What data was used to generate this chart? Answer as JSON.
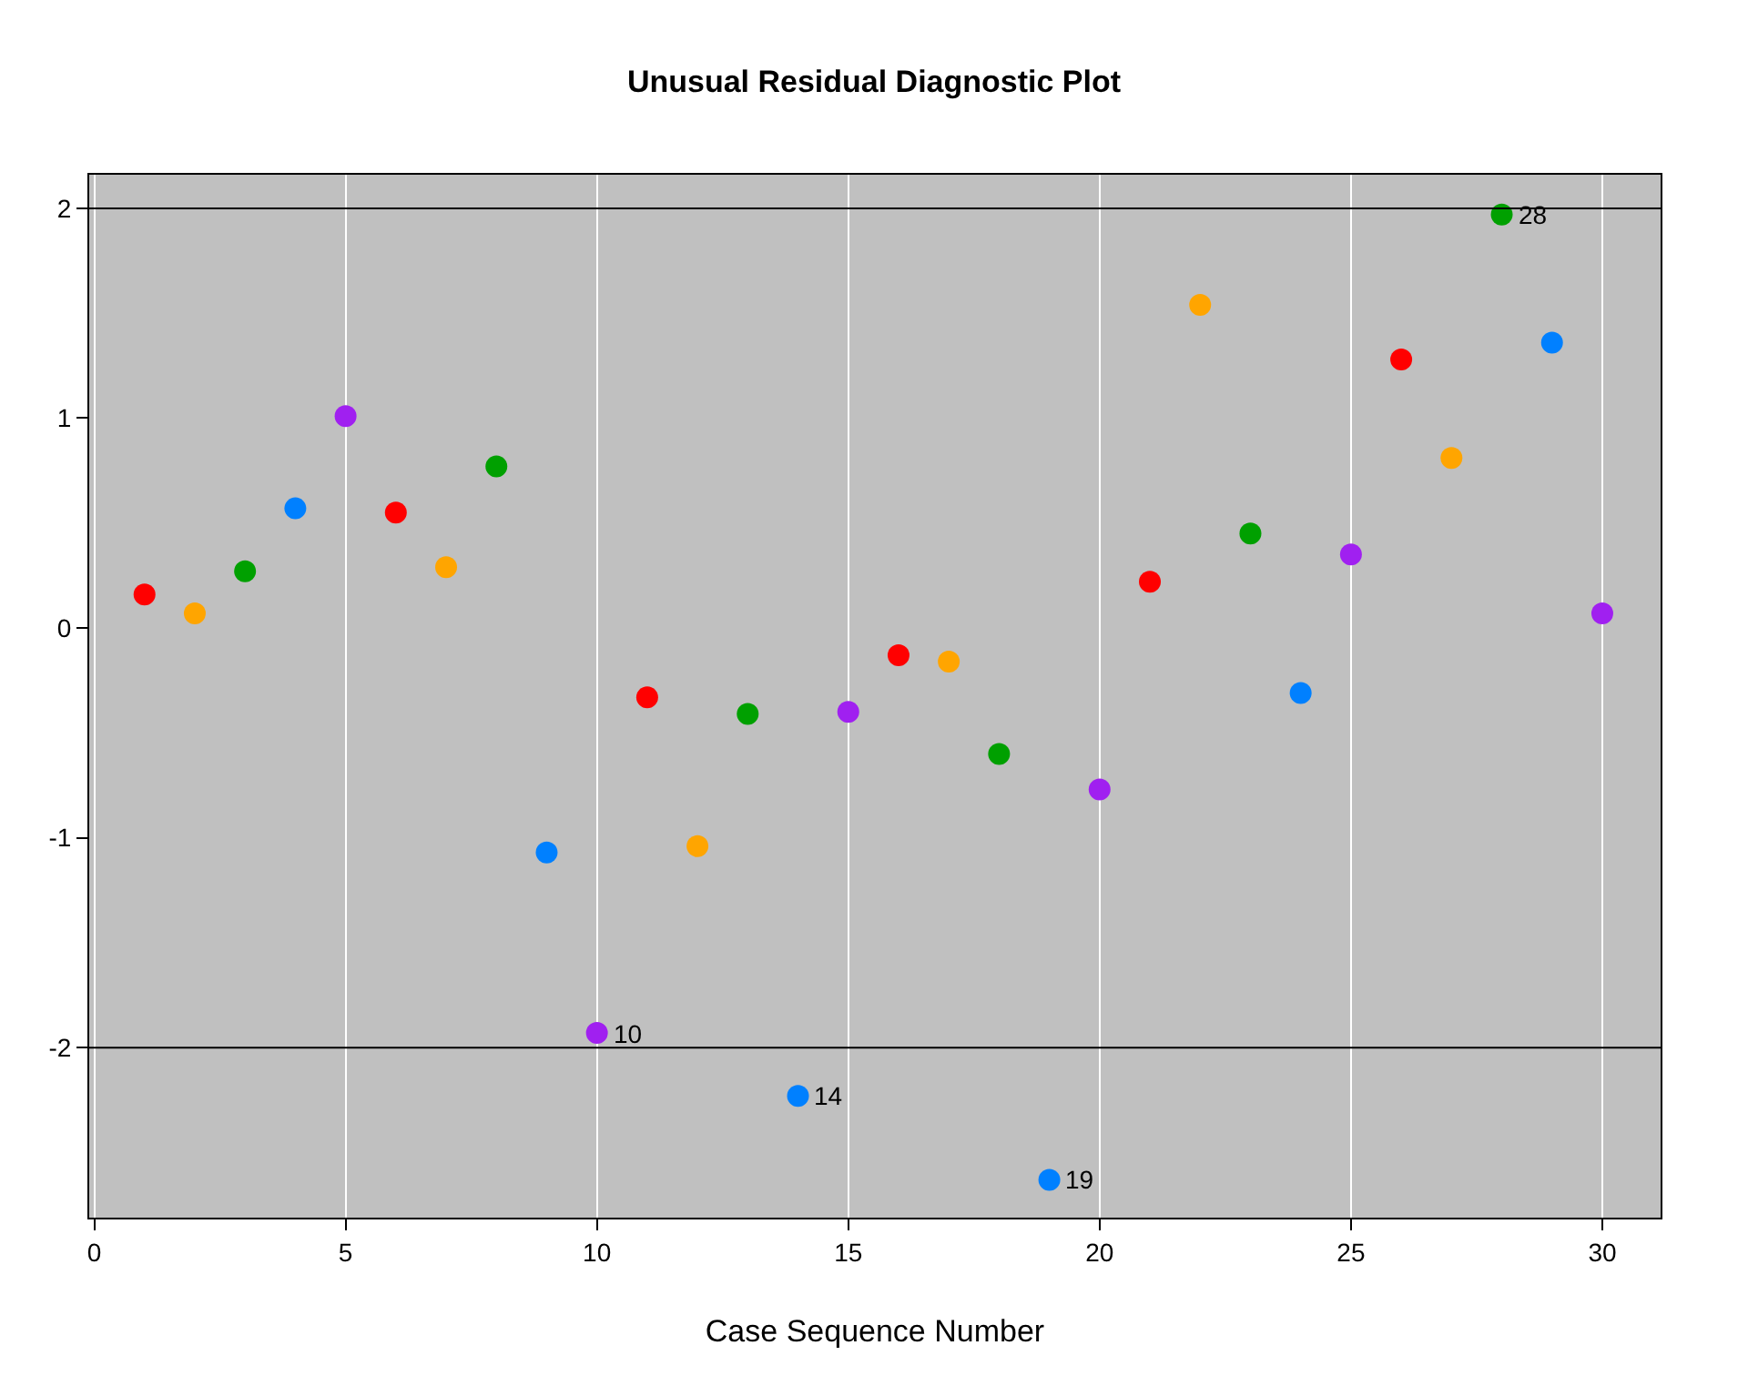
{
  "chart_data": {
    "type": "scatter",
    "title": "Unusual Residual Diagnostic Plot",
    "xlabel": "Case Sequence Number",
    "x": [
      1,
      2,
      3,
      4,
      5,
      6,
      7,
      8,
      9,
      10,
      11,
      12,
      13,
      14,
      15,
      16,
      17,
      18,
      19,
      20,
      21,
      22,
      23,
      24,
      25,
      26,
      27,
      28,
      29,
      30
    ],
    "values": [
      0.16,
      0.07,
      0.27,
      0.57,
      1.01,
      0.55,
      0.29,
      0.77,
      -1.07,
      -1.93,
      -0.33,
      -1.04,
      -0.41,
      -2.23,
      -0.4,
      -0.13,
      -0.16,
      -0.6,
      -2.63,
      -0.77,
      0.22,
      1.54,
      0.45,
      -0.31,
      0.35,
      1.28,
      0.81,
      1.97,
      1.36,
      0.07
    ],
    "colors": [
      "#ff0000",
      "#ffa500",
      "#00a000",
      "#0080ff",
      "#a020f0",
      "#ff0000",
      "#ffa500",
      "#00a000",
      "#0080ff",
      "#a020f0",
      "#ff0000",
      "#ffa500",
      "#00a000",
      "#0080ff",
      "#a020f0",
      "#ff0000",
      "#ffa500",
      "#00a000",
      "#0080ff",
      "#a020f0",
      "#ff0000",
      "#ffa500",
      "#00a000",
      "#0080ff",
      "#a020f0",
      "#ff0000",
      "#ffa500",
      "#00a000",
      "#0080ff",
      "#a020f0"
    ],
    "marker": "circle",
    "xlim": [
      -0.1,
      31.16
    ],
    "xticks": [
      0,
      5,
      10,
      15,
      20,
      25,
      30
    ],
    "ylim": [
      -2.81,
      2.16
    ],
    "yticks": [
      -2,
      -1,
      0,
      1,
      2
    ],
    "grid": "x",
    "ref_lines": [
      {
        "axis": "y",
        "value": 2,
        "color": "#000000"
      },
      {
        "axis": "y",
        "value": -2,
        "color": "#000000"
      }
    ],
    "annotations": [
      {
        "text": "10",
        "x": 10,
        "y": -1.93
      },
      {
        "text": "14",
        "x": 14,
        "y": -2.23
      },
      {
        "text": "19",
        "x": 19,
        "y": -2.63
      },
      {
        "text": "28",
        "x": 28,
        "y": 1.97
      }
    ]
  }
}
